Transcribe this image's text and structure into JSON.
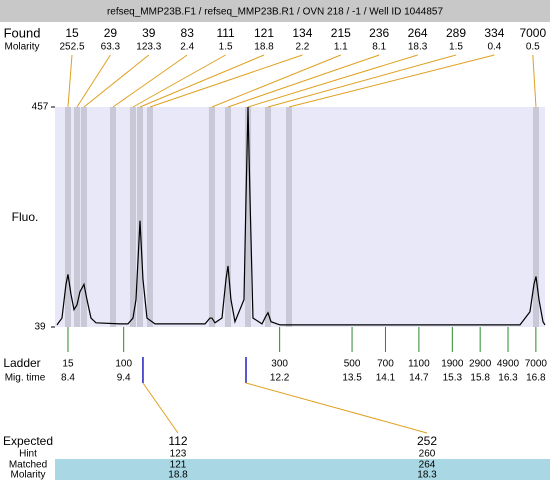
{
  "header": {
    "title": "refseq_MMP23B.F1 / refseq_MMP23B.R1 / OVN 218 / -1 / Well ID 1044857"
  },
  "chart_data": {
    "type": "line",
    "ylabel": "Fluo.",
    "color": "#000000",
    "x": [
      8.203,
      8.292,
      8.364,
      8.4,
      8.454,
      8.508,
      8.562,
      8.615,
      8.687,
      8.741,
      8.813,
      8.903,
      9.334,
      9.477,
      9.567,
      9.621,
      9.693,
      9.746,
      9.818,
      9.962,
      10.86,
      10.949,
      10.985,
      11.039,
      11.165,
      11.237,
      11.273,
      11.326,
      11.398,
      11.56,
      11.596,
      11.632,
      11.668,
      11.721,
      11.883,
      11.955,
      11.991,
      12.045,
      12.206,
      16.515,
      16.694,
      16.766,
      16.802,
      16.856,
      16.928,
      16.964
    ],
    "values": [
      43,
      56,
      120,
      139,
      101,
      72,
      81,
      106,
      120,
      91,
      56,
      47,
      45,
      45,
      56,
      91,
      241,
      130,
      56,
      45,
      45,
      56,
      56,
      47,
      56,
      130,
      155,
      91,
      49,
      91,
      284,
      457,
      284,
      56,
      45,
      60,
      66,
      49,
      43,
      43,
      68,
      120,
      135,
      91,
      49,
      43
    ],
    "xlim": [
      8.167,
      16.964
    ],
    "ylim": [
      39,
      457
    ],
    "yticks": [
      39,
      457
    ]
  },
  "found": {
    "label": "Found",
    "molarity_label": "Molarity",
    "band_color": "#c8c8d6",
    "peaks": [
      {
        "size": 15,
        "molarity": 252.5,
        "time": 8.4
      },
      {
        "size": 29,
        "molarity": 63.3,
        "time": 8.562
      },
      {
        "size": 39,
        "molarity": 123.3,
        "time": 8.687
      },
      {
        "size": 83,
        "molarity": 2.4,
        "time": 9.208
      },
      {
        "size": 111,
        "molarity": 1.5,
        "time": 9.567
      },
      {
        "size": 121,
        "molarity": 18.8,
        "time": 9.693
      },
      {
        "size": 134,
        "molarity": 2.2,
        "time": 9.872
      },
      {
        "size": 215,
        "molarity": 1.1,
        "time": 10.985
      },
      {
        "size": 236,
        "molarity": 8.1,
        "time": 11.273
      },
      {
        "size": 264,
        "molarity": 18.3,
        "time": 11.632
      },
      {
        "size": 289,
        "molarity": 1.5,
        "time": 11.991
      },
      {
        "size": 334,
        "molarity": 0.4,
        "time": 12.368
      },
      {
        "size": 7000,
        "molarity": 0.5,
        "time": 16.802
      }
    ]
  },
  "ladder": {
    "label": "Ladder",
    "time_label": "Mig. time",
    "peaks": [
      {
        "size": 15,
        "time": 8.4
      },
      {
        "size": 100,
        "time": 9.4
      },
      {
        "size": 300,
        "time": 12.2
      },
      {
        "size": 500,
        "time": 13.5
      },
      {
        "size": 700,
        "time": 14.1
      },
      {
        "size": 1100,
        "time": 14.7
      },
      {
        "size": 1900,
        "time": 15.3
      },
      {
        "size": 2900,
        "time": 15.8
      },
      {
        "size": 4900,
        "time": 16.3
      },
      {
        "size": 7000,
        "time": 16.8
      }
    ]
  },
  "expected": {
    "label": "Expected",
    "hint_label": "Hint",
    "matched_label": "Matched",
    "molarity_label": "Molarity",
    "columns": [
      {
        "size": 112,
        "hint": 123,
        "matched": 121,
        "molarity": 18.8,
        "time": 9.746
      },
      {
        "size": 252,
        "hint": 260,
        "matched": 264,
        "molarity": 18.3,
        "time": 11.596
      }
    ]
  }
}
